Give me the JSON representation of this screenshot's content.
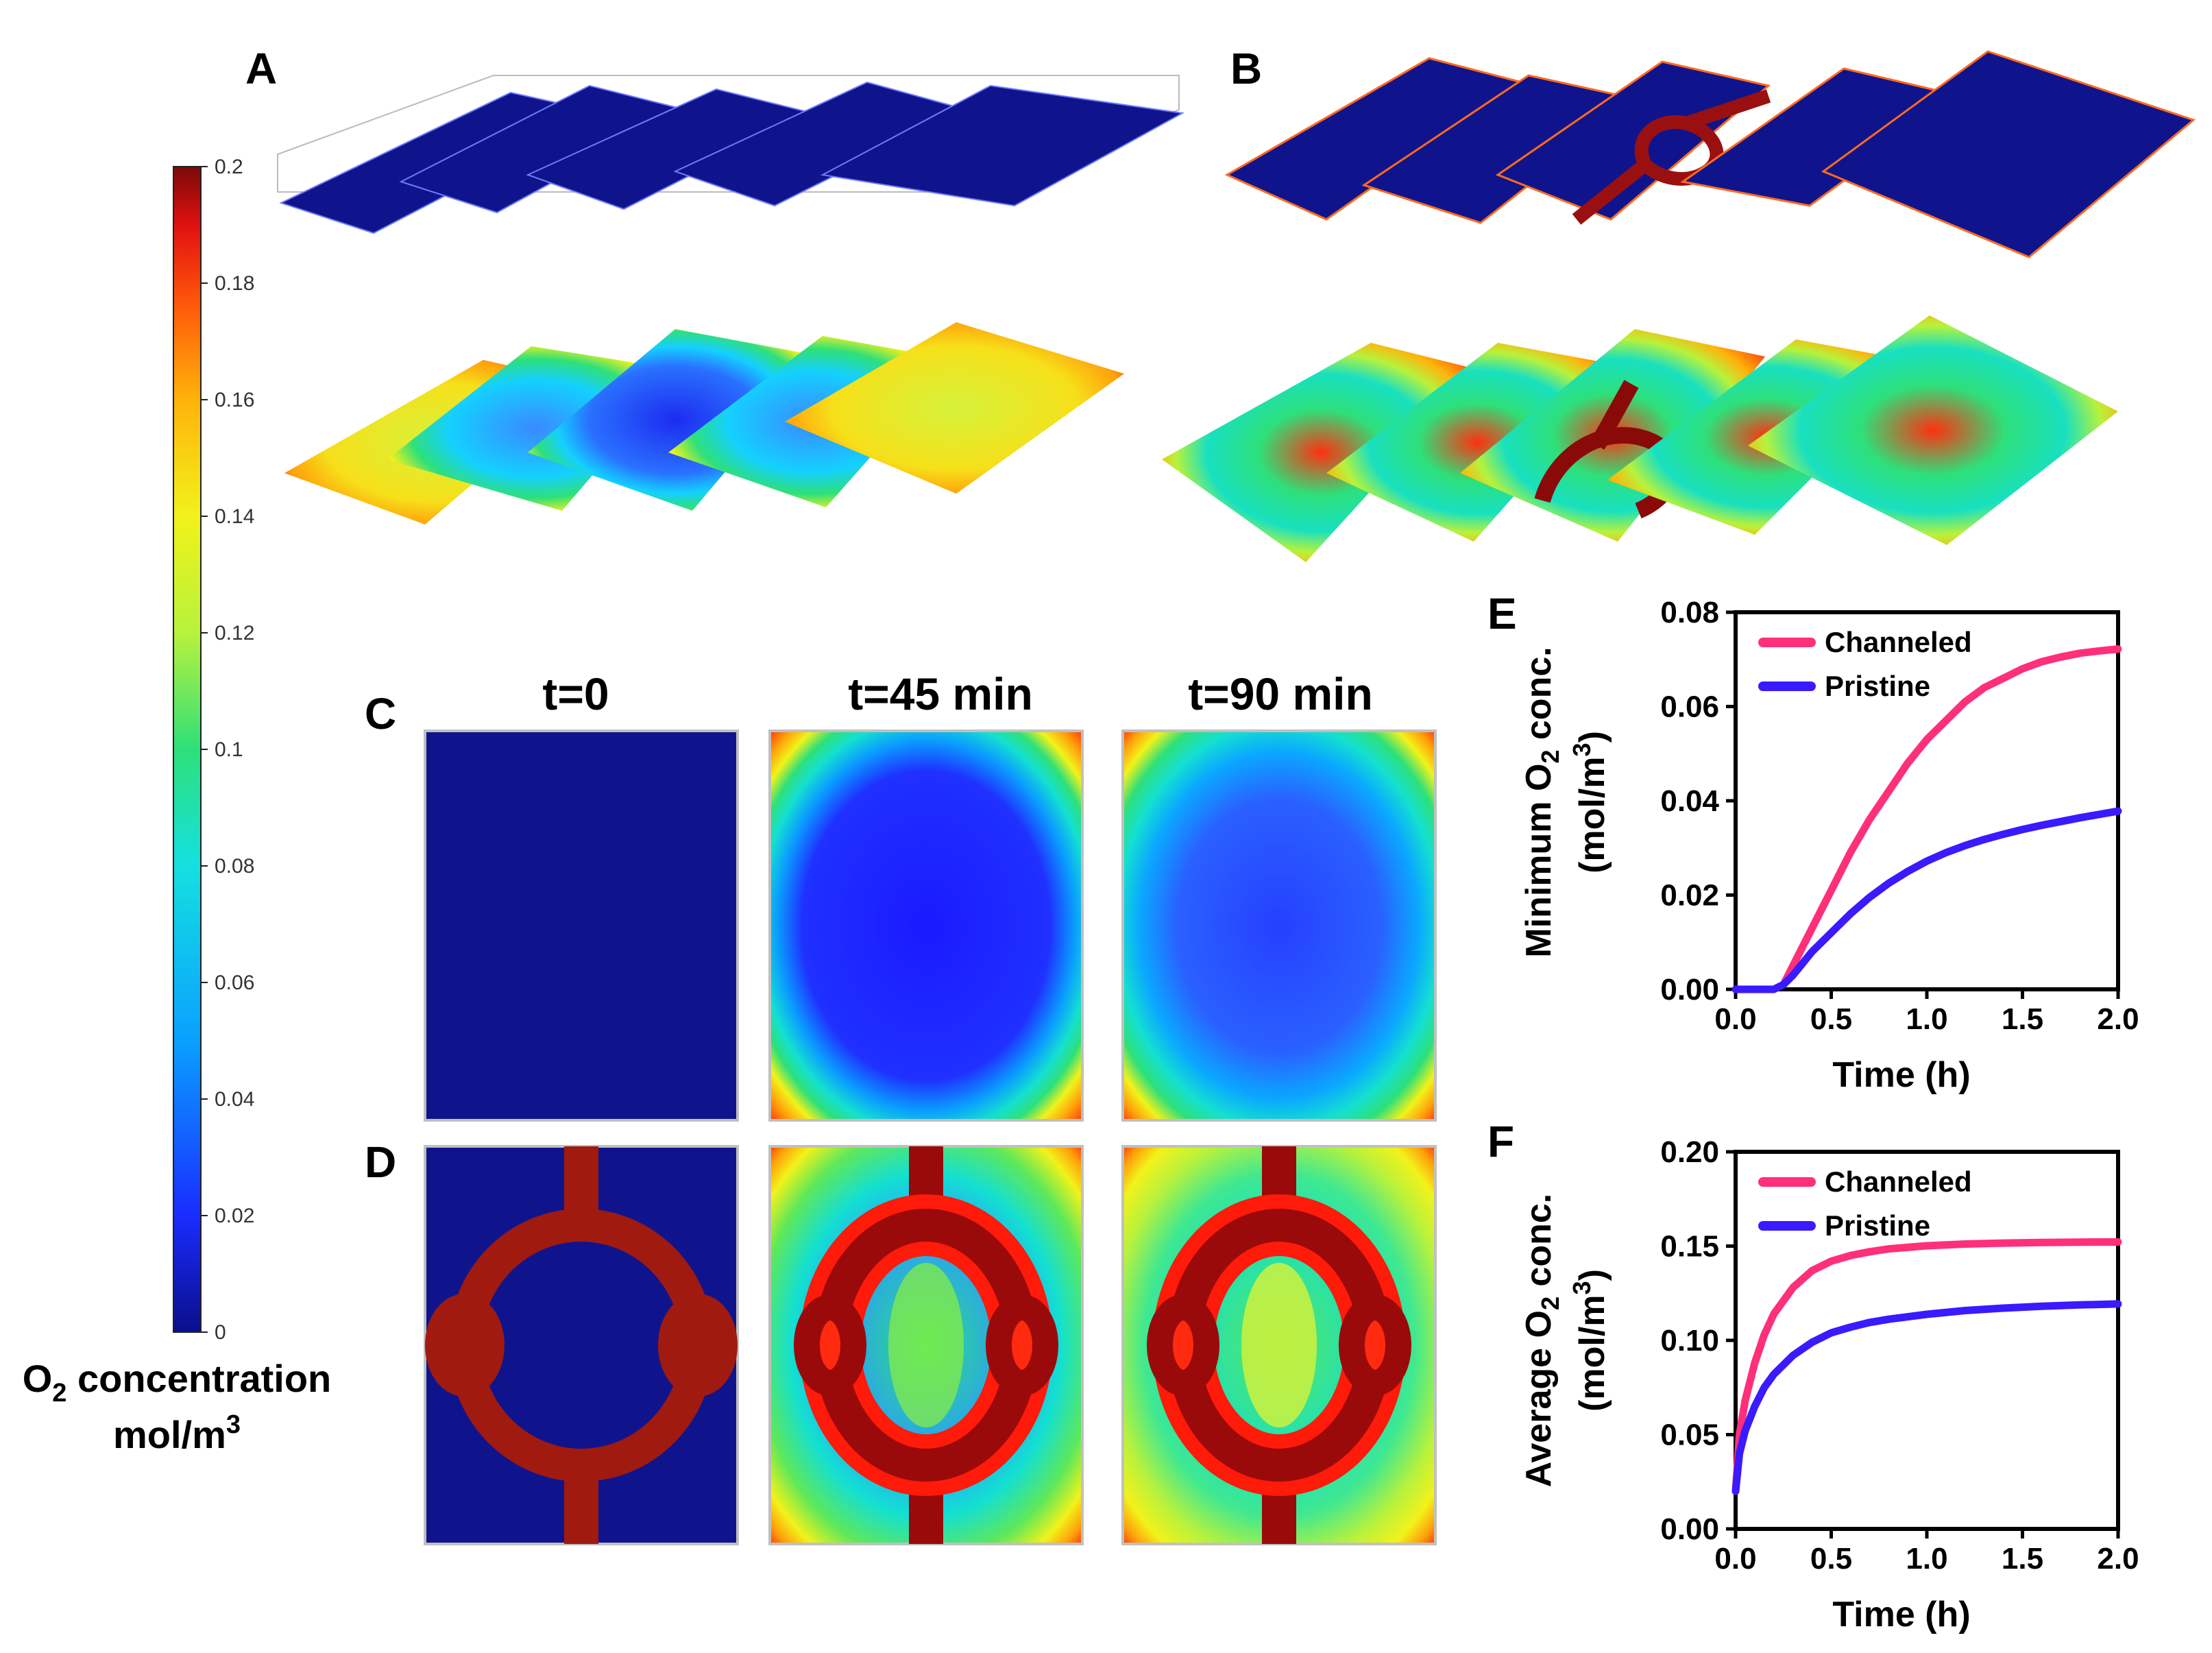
{
  "panels": {
    "a": "A",
    "b": "B",
    "c": "C",
    "d": "D",
    "e": "E",
    "f": "F"
  },
  "colorbar": {
    "ticks": [
      0.2,
      0.18,
      0.16,
      0.14,
      0.12,
      0.1,
      0.08,
      0.06,
      0.04,
      0.02,
      0
    ],
    "tick_labels": [
      "0.2",
      "0.18",
      "0.16",
      "0.14",
      "0.12",
      "0.1",
      "0.08",
      "0.06",
      "0.04",
      "0.02",
      "0"
    ],
    "label_line1_prefix": "O",
    "label_line1_sub": "2",
    "label_line1_suffix": " concentration",
    "label_line2_prefix": "mol/m",
    "label_line2_sup": "3",
    "colors": [
      "#0a0f8a",
      "#1a2cff",
      "#0aa0ff",
      "#14e0e0",
      "#2ee07a",
      "#b7f23c",
      "#f2f21a",
      "#ffb30a",
      "#ff5a0a",
      "#e01010",
      "#7a0a0a"
    ]
  },
  "time_labels": [
    "t=0",
    "t=45 min",
    "t=90 min"
  ],
  "chart_data": [
    {
      "id": "E",
      "type": "line",
      "xlabel": "Time (h)",
      "ylabel_line1": "Minimum O",
      "ylabel_sub": "2",
      "ylabel_line1_suffix": " conc.",
      "ylabel_line2_prefix": "(mol/m",
      "ylabel_line2_sup": "3",
      "ylabel_line2_suffix": ")",
      "xlim": [
        0,
        2.0
      ],
      "ylim": [
        0,
        0.08
      ],
      "xticks": [
        "0.0",
        "0.5",
        "1.0",
        "1.5",
        "2.0"
      ],
      "yticks": [
        "0.00",
        "0.02",
        "0.04",
        "0.06",
        "0.08"
      ],
      "legend_position": "top-left",
      "series": [
        {
          "name": "Channeled",
          "color": "#ff2f7a",
          "x": [
            0,
            0.1,
            0.2,
            0.25,
            0.3,
            0.4,
            0.5,
            0.6,
            0.7,
            0.8,
            0.9,
            1.0,
            1.1,
            1.2,
            1.3,
            1.4,
            1.5,
            1.6,
            1.7,
            1.8,
            1.9,
            2.0
          ],
          "y": [
            0,
            0,
            0,
            0.001,
            0.005,
            0.013,
            0.021,
            0.029,
            0.036,
            0.042,
            0.048,
            0.053,
            0.057,
            0.061,
            0.064,
            0.066,
            0.068,
            0.0695,
            0.0705,
            0.0713,
            0.0718,
            0.0722
          ]
        },
        {
          "name": "Pristine",
          "color": "#3a1aff",
          "x": [
            0,
            0.1,
            0.2,
            0.25,
            0.3,
            0.4,
            0.5,
            0.6,
            0.7,
            0.8,
            0.9,
            1.0,
            1.1,
            1.2,
            1.3,
            1.4,
            1.5,
            1.6,
            1.7,
            1.8,
            1.9,
            2.0
          ],
          "y": [
            0,
            0,
            0,
            0.001,
            0.003,
            0.008,
            0.012,
            0.016,
            0.0195,
            0.0225,
            0.025,
            0.0272,
            0.029,
            0.0305,
            0.0318,
            0.0329,
            0.0339,
            0.0348,
            0.0356,
            0.0364,
            0.0371,
            0.0378
          ]
        }
      ]
    },
    {
      "id": "F",
      "type": "line",
      "xlabel": "Time (h)",
      "ylabel_line1": "Average O",
      "ylabel_sub": "2",
      "ylabel_line1_suffix": " conc.",
      "ylabel_line2_prefix": "(mol/m",
      "ylabel_line2_sup": "3",
      "ylabel_line2_suffix": ")",
      "xlim": [
        0,
        2.0
      ],
      "ylim": [
        0,
        0.2
      ],
      "xticks": [
        "0.0",
        "0.5",
        "1.0",
        "1.5",
        "2.0"
      ],
      "yticks": [
        "0.00",
        "0.05",
        "0.10",
        "0.15",
        "0.20"
      ],
      "legend_position": "top-left",
      "series": [
        {
          "name": "Channeled",
          "color": "#ff2f7a",
          "x": [
            0,
            0.02,
            0.05,
            0.1,
            0.15,
            0.2,
            0.3,
            0.4,
            0.5,
            0.6,
            0.7,
            0.8,
            1.0,
            1.2,
            1.4,
            1.6,
            1.8,
            2.0
          ],
          "y": [
            0.02,
            0.05,
            0.068,
            0.088,
            0.103,
            0.114,
            0.128,
            0.137,
            0.142,
            0.145,
            0.147,
            0.1485,
            0.1502,
            0.1511,
            0.1516,
            0.1519,
            0.1521,
            0.1522
          ]
        },
        {
          "name": "Pristine",
          "color": "#3a1aff",
          "x": [
            0,
            0.02,
            0.05,
            0.1,
            0.15,
            0.2,
            0.3,
            0.4,
            0.5,
            0.6,
            0.7,
            0.8,
            1.0,
            1.2,
            1.4,
            1.6,
            1.8,
            2.0
          ],
          "y": [
            0.02,
            0.04,
            0.052,
            0.065,
            0.075,
            0.082,
            0.092,
            0.099,
            0.104,
            0.107,
            0.1095,
            0.1112,
            0.1138,
            0.1158,
            0.1171,
            0.1181,
            0.1188,
            0.1193
          ]
        }
      ]
    }
  ]
}
